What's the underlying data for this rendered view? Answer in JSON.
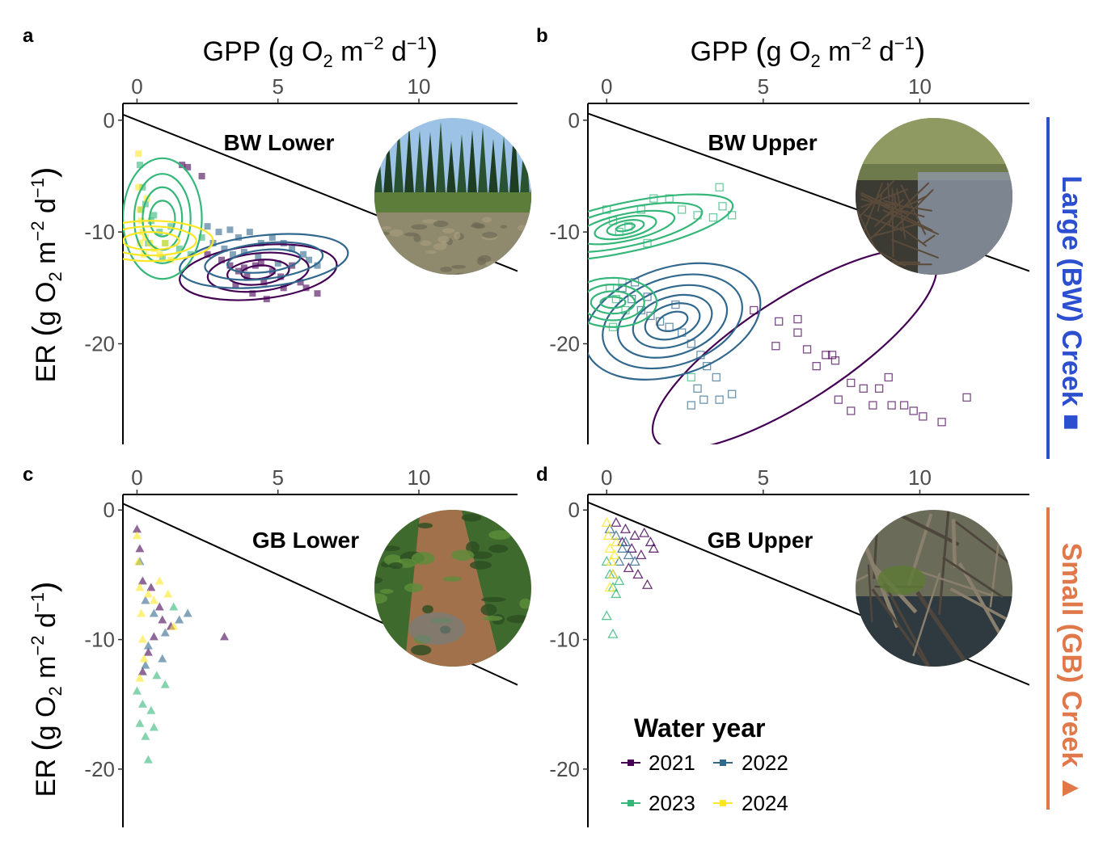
{
  "figure": {
    "colors": {
      "2021": "#440154",
      "2022": "#31688e",
      "2023": "#35b779",
      "2024": "#fde725"
    },
    "strip_labels": [
      {
        "text": "Large (BW) Creek ■",
        "color": "#2b4fcf"
      },
      {
        "text": "Small (GB) Creek ▲",
        "color": "#e0784a"
      }
    ],
    "legend": {
      "title": "Water year",
      "entries": [
        "2021",
        "2022",
        "2023",
        "2024"
      ]
    }
  },
  "chart_data": [
    {
      "panel": "a",
      "site": "BW Lower",
      "type": "scatter",
      "marker": "square-filled",
      "xlabel": "GPP (g O2 m-2 d-1)",
      "ylabel": "ER (g O2 m-2 d-1)",
      "xlim": [
        -0.5,
        13.5
      ],
      "ylim": [
        -29,
        1.5
      ],
      "xticks": [
        "0",
        "5",
        "10"
      ],
      "yticks": [
        "0",
        "-10",
        "-20"
      ],
      "reference_line": {
        "slope": -1,
        "intercept": 0
      },
      "series": [
        {
          "name": "2021",
          "points": [
            [
              2.5,
              -12
            ],
            [
              3,
              -12.5
            ],
            [
              3.3,
              -13
            ],
            [
              3.6,
              -13.5
            ],
            [
              3.9,
              -14
            ],
            [
              4.2,
              -13
            ],
            [
              4.5,
              -14.5
            ],
            [
              4.8,
              -13.5
            ],
            [
              5.1,
              -14
            ],
            [
              5.5,
              -13
            ],
            [
              5.8,
              -14.5
            ],
            [
              6,
              -15
            ],
            [
              6.4,
              -15.5
            ],
            [
              4.1,
              -15.5
            ],
            [
              4.6,
              -16
            ],
            [
              3.5,
              -14.8
            ],
            [
              1.6,
              -4
            ],
            [
              1.8,
              -4.2
            ],
            [
              2.3,
              -5
            ],
            [
              3.8,
              -13.2
            ],
            [
              4.4,
              -12.8
            ],
            [
              5.2,
              -15
            ]
          ]
        },
        {
          "name": "2022",
          "points": [
            [
              2.5,
              -9.5
            ],
            [
              2.9,
              -10
            ],
            [
              3.3,
              -9.8
            ],
            [
              3.6,
              -10.5
            ],
            [
              4,
              -10
            ],
            [
              4.4,
              -11
            ],
            [
              4.8,
              -10.5
            ],
            [
              5.2,
              -11
            ],
            [
              5.5,
              -11.5
            ],
            [
              5.9,
              -12
            ],
            [
              6.1,
              -12.5
            ],
            [
              3.1,
              -11.5
            ],
            [
              3.4,
              -12
            ],
            [
              3.8,
              -11.8
            ],
            [
              4.3,
              -12.2
            ],
            [
              5,
              -12.8
            ],
            [
              2.7,
              -11
            ],
            [
              6.4,
              -13
            ]
          ]
        },
        {
          "name": "2023",
          "points": [
            [
              0.1,
              -4
            ],
            [
              0.2,
              -6
            ],
            [
              0.3,
              -7.5
            ],
            [
              0.5,
              -9
            ],
            [
              0.8,
              -10
            ],
            [
              1,
              -11
            ],
            [
              1.5,
              -11.5
            ],
            [
              1.9,
              -12
            ],
            [
              2.3,
              -10.5
            ],
            [
              0.4,
              -11
            ],
            [
              0.15,
              -8
            ],
            [
              0.6,
              -8.5
            ],
            [
              1.2,
              -9.5
            ],
            [
              0.9,
              -12.3
            ]
          ]
        },
        {
          "name": "2024",
          "points": [
            [
              0.05,
              -6
            ],
            [
              0.1,
              -8
            ],
            [
              0.15,
              -9
            ],
            [
              0.2,
              -10
            ],
            [
              0.3,
              -10.5
            ],
            [
              0.45,
              -11
            ],
            [
              0.6,
              -11.5
            ],
            [
              0.8,
              -12
            ],
            [
              1,
              -11
            ],
            [
              1.2,
              -12.5
            ],
            [
              0.25,
              -12
            ],
            [
              0.1,
              -11
            ],
            [
              0.35,
              -7
            ],
            [
              0.05,
              -3
            ]
          ]
        }
      ],
      "contours": [
        "2021",
        "2022",
        "2023",
        "2024"
      ]
    },
    {
      "panel": "b",
      "site": "BW Upper",
      "type": "scatter",
      "marker": "square-open",
      "xlabel": "GPP (g O2 m-2 d-1)",
      "ylabel": "",
      "xlim": [
        -0.6,
        13.5
      ],
      "ylim": [
        -29,
        1.5
      ],
      "xticks": [
        "0",
        "5",
        "10"
      ],
      "yticks": [
        "0",
        "-10",
        "-20"
      ],
      "reference_line": {
        "slope": -1,
        "intercept": 0
      },
      "series": [
        {
          "name": "2021",
          "points": [
            [
              4.7,
              -17
            ],
            [
              5.5,
              -18
            ],
            [
              6.1,
              -19
            ],
            [
              5.4,
              -20.2
            ],
            [
              6.4,
              -20.5
            ],
            [
              7,
              -21
            ],
            [
              7.3,
              -21.5
            ],
            [
              6.7,
              -22
            ],
            [
              7.8,
              -23.5
            ],
            [
              8.2,
              -24
            ],
            [
              9,
              -23
            ],
            [
              7.4,
              -25
            ],
            [
              7.8,
              -26
            ],
            [
              8.5,
              -25.5
            ],
            [
              9.1,
              -25.5
            ],
            [
              9.5,
              -25.5
            ],
            [
              9.8,
              -26
            ],
            [
              10.1,
              -26.5
            ],
            [
              10.7,
              -27
            ],
            [
              11.5,
              -24.8
            ],
            [
              8.7,
              -24
            ],
            [
              7.2,
              -21
            ],
            [
              6.1,
              -17.8
            ]
          ]
        },
        {
          "name": "2022",
          "points": [
            [
              0.5,
              -15
            ],
            [
              0.8,
              -16
            ],
            [
              1.1,
              -17
            ],
            [
              1.4,
              -17.5
            ],
            [
              1.7,
              -18
            ],
            [
              2,
              -18.5
            ],
            [
              2.4,
              -19
            ],
            [
              2.7,
              -20
            ],
            [
              3,
              -21
            ],
            [
              3.2,
              -22
            ],
            [
              3.5,
              -23
            ],
            [
              2.9,
              -24
            ],
            [
              3.1,
              -25
            ],
            [
              3.6,
              -25
            ],
            [
              4,
              -24.5
            ],
            [
              2.7,
              -25.5
            ],
            [
              1.3,
              -15.8
            ],
            [
              2.2,
              -16.5
            ],
            [
              0.9,
              -14.5
            ]
          ]
        },
        {
          "name": "2023",
          "points": [
            [
              0,
              -8
            ],
            [
              0.2,
              -9
            ],
            [
              0.4,
              -10
            ],
            [
              0.7,
              -9.5
            ],
            [
              1.1,
              -8
            ],
            [
              1.5,
              -7
            ],
            [
              2,
              -7
            ],
            [
              2.4,
              -8
            ],
            [
              2.9,
              -8.5
            ],
            [
              3.4,
              -8.7
            ],
            [
              3.7,
              -7.7
            ],
            [
              3.6,
              -6
            ],
            [
              4,
              -8.5
            ],
            [
              0.1,
              -15
            ],
            [
              0.3,
              -16
            ],
            [
              0.6,
              -17
            ],
            [
              0.2,
              -18.5
            ],
            [
              0.5,
              -14.5
            ],
            [
              2.7,
              -23
            ],
            [
              1.3,
              -11
            ]
          ]
        }
      ],
      "contours": [
        "2021",
        "2022",
        "2023"
      ]
    },
    {
      "panel": "c",
      "site": "GB Lower",
      "type": "scatter",
      "marker": "triangle-filled",
      "xlabel": "",
      "ylabel": "ER (g O2 m-2 d-1)",
      "xlim": [
        -0.5,
        13.5
      ],
      "ylim": [
        -24.5,
        1.2
      ],
      "xticks": [
        "0",
        "5",
        "10"
      ],
      "yticks": [
        "0",
        "-10",
        "-20"
      ],
      "reference_line": {
        "slope": -1,
        "intercept": 0
      },
      "series": [
        {
          "name": "2021",
          "points": [
            [
              0,
              -1.5
            ],
            [
              0.1,
              -3
            ],
            [
              0.2,
              -5.5
            ],
            [
              0.5,
              -6
            ],
            [
              0.8,
              -7.5
            ],
            [
              1.2,
              -9
            ],
            [
              0.4,
              -11
            ],
            [
              3.1,
              -9.8
            ],
            [
              0.9,
              -8.5
            ],
            [
              0.2,
              -12.5
            ],
            [
              0.6,
              -9.8
            ]
          ]
        },
        {
          "name": "2022",
          "points": [
            [
              0.1,
              -4
            ],
            [
              0.3,
              -7
            ],
            [
              0.6,
              -8
            ],
            [
              1,
              -9.5
            ],
            [
              1.5,
              -8.5
            ],
            [
              1.8,
              -8
            ],
            [
              0.4,
              -10.5
            ],
            [
              0.3,
              -12
            ],
            [
              0.9,
              -11.5
            ]
          ]
        },
        {
          "name": "2023",
          "points": [
            [
              0,
              -14
            ],
            [
              0.2,
              -15
            ],
            [
              0.1,
              -16.5
            ],
            [
              0.3,
              -17.5
            ],
            [
              0.4,
              -19.3
            ],
            [
              0.5,
              -15.5
            ],
            [
              1,
              -13.5
            ],
            [
              1.3,
              -7.5
            ],
            [
              0.7,
              -12.8
            ],
            [
              0.6,
              -16.8
            ]
          ]
        },
        {
          "name": "2024",
          "points": [
            [
              0,
              -2
            ],
            [
              0.05,
              -4
            ],
            [
              0.1,
              -6
            ],
            [
              0.15,
              -8
            ],
            [
              0.2,
              -10
            ],
            [
              0.25,
              -11.5
            ],
            [
              0.1,
              -13
            ],
            [
              0.4,
              -6.5
            ],
            [
              0.6,
              -7
            ],
            [
              1.1,
              -6.5
            ],
            [
              1.3,
              -9
            ],
            [
              0.8,
              -5.5
            ]
          ]
        }
      ]
    },
    {
      "panel": "d",
      "site": "GB Upper",
      "type": "scatter",
      "marker": "triangle-open",
      "xlabel": "",
      "ylabel": "",
      "xlim": [
        -0.6,
        13.5
      ],
      "ylim": [
        -24.5,
        1.2
      ],
      "xticks": [
        "0",
        "5",
        "10"
      ],
      "yticks": [
        "0",
        "-10",
        "-20"
      ],
      "reference_line": {
        "slope": -1,
        "intercept": 0
      },
      "series": [
        {
          "name": "2021",
          "points": [
            [
              0.3,
              -1
            ],
            [
              0.6,
              -1.5
            ],
            [
              0.9,
              -2
            ],
            [
              1.2,
              -1.8
            ],
            [
              1.4,
              -2.5
            ],
            [
              0.8,
              -3
            ],
            [
              1.1,
              -3.5
            ],
            [
              0.7,
              -4.5
            ],
            [
              1,
              -5
            ],
            [
              1.5,
              -3
            ],
            [
              1.3,
              -5.8
            ],
            [
              0.5,
              -2.5
            ]
          ]
        },
        {
          "name": "2022",
          "points": [
            [
              0.1,
              -1.5
            ],
            [
              0.3,
              -2
            ],
            [
              0.5,
              -3
            ],
            [
              0.7,
              -3.5
            ],
            [
              0.4,
              -4
            ],
            [
              0.6,
              -2.5
            ],
            [
              0.9,
              -4
            ],
            [
              0.2,
              -5
            ]
          ]
        },
        {
          "name": "2023",
          "points": [
            [
              0,
              -4
            ],
            [
              0.1,
              -5
            ],
            [
              0.2,
              -6
            ],
            [
              0.3,
              -6.5
            ],
            [
              0.4,
              -5.5
            ],
            [
              0,
              -8.2
            ],
            [
              0.2,
              -9.6
            ]
          ]
        },
        {
          "name": "2024",
          "points": [
            [
              0,
              -1
            ],
            [
              0.05,
              -2
            ],
            [
              0.1,
              -3
            ],
            [
              0.15,
              -4
            ],
            [
              0.2,
              -5
            ],
            [
              0.25,
              -3.5
            ],
            [
              0.3,
              -2.5
            ],
            [
              0.1,
              -6
            ]
          ]
        }
      ]
    }
  ]
}
